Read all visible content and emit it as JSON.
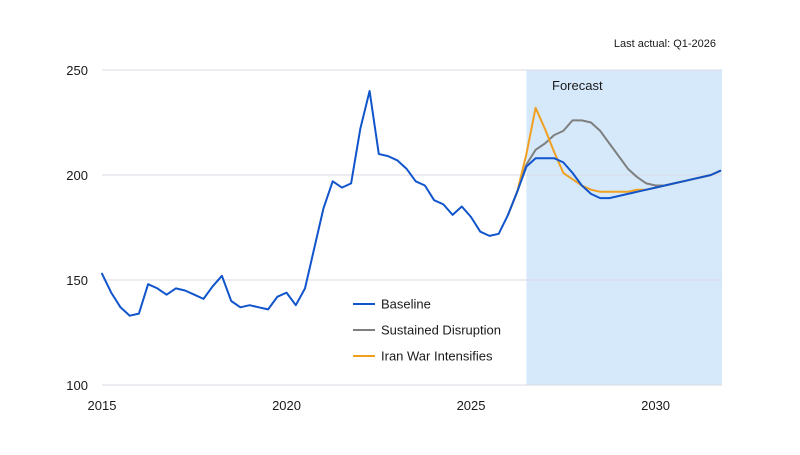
{
  "chart_data": {
    "type": "line",
    "note": "Last actual: Q1-2026",
    "forecast_label": "Forecast",
    "forecast_start": 2026.5,
    "xlim": [
      2015,
      2031.8
    ],
    "ylim": [
      100,
      250
    ],
    "x_ticks": [
      2015,
      2020,
      2025,
      2030
    ],
    "y_ticks": [
      100,
      150,
      200,
      250
    ],
    "grid": true,
    "legend_position": "center-bottom",
    "colors": {
      "forecast_fill": "#d6e9fb",
      "grid": "#d9d9e3"
    },
    "series": [
      {
        "name": "Baseline",
        "color": "#1155cc",
        "x": [
          2015.0,
          2015.25,
          2015.5,
          2015.75,
          2016.0,
          2016.25,
          2016.5,
          2016.75,
          2017.0,
          2017.25,
          2017.5,
          2017.75,
          2018.0,
          2018.25,
          2018.5,
          2018.75,
          2019.0,
          2019.25,
          2019.5,
          2019.75,
          2020.0,
          2020.25,
          2020.5,
          2020.75,
          2021.0,
          2021.25,
          2021.5,
          2021.75,
          2022.0,
          2022.25,
          2022.5,
          2022.75,
          2023.0,
          2023.25,
          2023.5,
          2023.75,
          2024.0,
          2024.25,
          2024.5,
          2024.75,
          2025.0,
          2025.25,
          2025.5,
          2025.75,
          2026.0,
          2026.25,
          2026.5,
          2026.75,
          2027.0,
          2027.25,
          2027.5,
          2027.75,
          2028.0,
          2028.25,
          2028.5,
          2028.75,
          2029.0,
          2029.25,
          2029.5,
          2029.75,
          2030.0,
          2030.25,
          2030.5,
          2030.75,
          2031.0,
          2031.25,
          2031.5,
          2031.75
        ],
        "values": [
          153,
          144,
          137,
          133,
          134,
          148,
          146,
          143,
          146,
          145,
          143,
          141,
          147,
          152,
          140,
          137,
          138,
          137,
          136,
          142,
          144,
          138,
          146,
          165,
          184,
          197,
          194,
          196,
          222,
          240,
          210,
          209,
          207,
          203,
          197,
          195,
          188,
          186,
          181,
          185,
          180,
          173,
          171,
          172,
          181,
          192,
          204,
          208,
          208,
          208,
          206,
          201,
          195,
          191,
          189,
          189,
          190,
          191,
          192,
          193,
          194,
          195,
          196,
          197,
          198,
          199,
          200,
          202
        ]
      },
      {
        "name": "Sustained Disruption",
        "color": "#7f7f7f",
        "x": [
          2026.0,
          2026.25,
          2026.5,
          2026.75,
          2027.0,
          2027.25,
          2027.5,
          2027.75,
          2028.0,
          2028.25,
          2028.5,
          2028.75,
          2029.0,
          2029.25,
          2029.5,
          2029.75,
          2030.0,
          2030.25,
          2030.5,
          2030.75,
          2031.0,
          2031.25,
          2031.5,
          2031.75
        ],
        "values": [
          181,
          192,
          205,
          212,
          215,
          219,
          221,
          226,
          226,
          225,
          221,
          215,
          209,
          203,
          199,
          196,
          195,
          195,
          196,
          197,
          198,
          199,
          200,
          202
        ]
      },
      {
        "name": "Iran War Intensifies",
        "color": "#f0a020",
        "x": [
          2026.0,
          2026.25,
          2026.5,
          2026.75,
          2027.0,
          2027.25,
          2027.5,
          2027.75,
          2028.0,
          2028.25,
          2028.5,
          2028.75,
          2029.0,
          2029.25,
          2029.5,
          2029.75,
          2030.0,
          2030.25,
          2030.5,
          2030.75,
          2031.0,
          2031.25,
          2031.5,
          2031.75
        ],
        "values": [
          181,
          192,
          210,
          232,
          222,
          211,
          201,
          198,
          195,
          193,
          192,
          192,
          192,
          192,
          193,
          193,
          194,
          195,
          196,
          197,
          198,
          199,
          200,
          202
        ]
      }
    ]
  }
}
